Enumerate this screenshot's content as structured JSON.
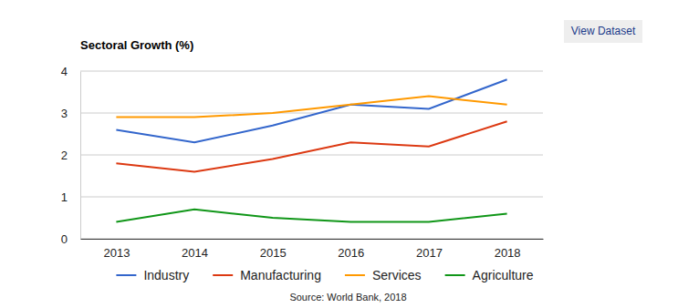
{
  "chart_data": {
    "type": "line",
    "title": "Sectoral Growth (%)",
    "annotations": [
      "View Dataset",
      "Source: World Bank, 2018"
    ],
    "categories": [
      "2013",
      "2014",
      "2015",
      "2016",
      "2017",
      "2018"
    ],
    "series": [
      {
        "name": "Industry",
        "color": "#3366cc",
        "values": [
          2.6,
          2.3,
          2.7,
          3.2,
          3.1,
          3.8
        ]
      },
      {
        "name": "Manufacturing",
        "color": "#dc3912",
        "values": [
          1.8,
          1.6,
          1.9,
          2.3,
          2.2,
          2.8
        ]
      },
      {
        "name": "Services",
        "color": "#ff9900",
        "values": [
          2.9,
          2.9,
          3.0,
          3.2,
          3.4,
          3.2
        ]
      },
      {
        "name": "Agriculture",
        "color": "#109618",
        "values": [
          0.4,
          0.7,
          0.5,
          0.4,
          0.4,
          0.6
        ]
      }
    ],
    "ylim": [
      0,
      4
    ],
    "yticks": [
      0,
      1,
      2,
      3,
      4
    ],
    "grid": true,
    "legend": "bottom"
  }
}
